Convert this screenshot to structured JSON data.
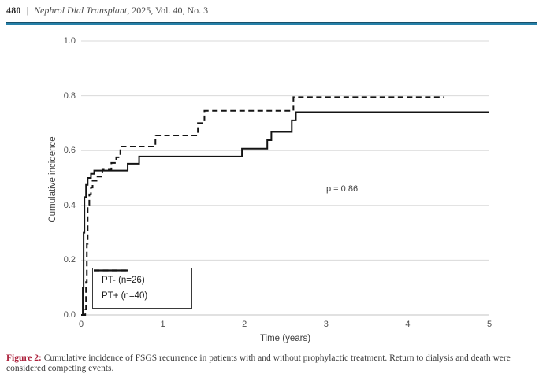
{
  "header": {
    "page_number": "480",
    "separator": "|",
    "journal": "Nephrol Dial Transplant",
    "meta": ", 2025, Vol. 40, No. 3"
  },
  "colors": {
    "header_rule": "#2680a8",
    "figure_label": "#ab1f3a",
    "curve": "#141414",
    "gridline": "#dadada",
    "axis_line": "#c3c3c3"
  },
  "chart_data": {
    "type": "line",
    "subtype": "step-function-cumulative-incidence",
    "title": "",
    "xlabel": "Time (years)",
    "ylabel": "Cumulative incidence",
    "xlim": [
      0,
      5
    ],
    "ylim": [
      0.0,
      1.0
    ],
    "x_tick_labels": [
      "0",
      "1",
      "2",
      "3",
      "4",
      "5"
    ],
    "y_tick_labels": [
      "0.0",
      "0.2",
      "0.4",
      "0.6",
      "0.8",
      "1.0"
    ],
    "grid": "horizontal",
    "annotation": "p = 0.86",
    "legend_position": "lower-left",
    "series": [
      {
        "name": "PT- (n=26)",
        "line_style": "dashed",
        "end_time": 4.45,
        "points": [
          [
            0,
            0
          ],
          [
            0.05,
            0.02
          ],
          [
            0.06,
            0.12
          ],
          [
            0.07,
            0.26
          ],
          [
            0.08,
            0.4
          ],
          [
            0.1,
            0.44
          ],
          [
            0.12,
            0.465
          ],
          [
            0.14,
            0.49
          ],
          [
            0.2,
            0.505
          ],
          [
            0.26,
            0.53
          ],
          [
            0.37,
            0.555
          ],
          [
            0.43,
            0.575
          ],
          [
            0.48,
            0.615
          ],
          [
            0.91,
            0.655
          ],
          [
            1.43,
            0.7
          ],
          [
            1.51,
            0.745
          ],
          [
            2.6,
            0.795
          ]
        ]
      },
      {
        "name": "PT+ (n=40)",
        "line_style": "solid",
        "end_time": 5.0,
        "points": [
          [
            0,
            0
          ],
          [
            0.02,
            0.1
          ],
          [
            0.03,
            0.3
          ],
          [
            0.04,
            0.43
          ],
          [
            0.06,
            0.475
          ],
          [
            0.08,
            0.5
          ],
          [
            0.12,
            0.515
          ],
          [
            0.16,
            0.527
          ],
          [
            0.57,
            0.552
          ],
          [
            0.71,
            0.578
          ],
          [
            1.97,
            0.607
          ],
          [
            2.28,
            0.638
          ],
          [
            2.33,
            0.668
          ],
          [
            2.58,
            0.71
          ],
          [
            2.63,
            0.74
          ]
        ]
      }
    ]
  },
  "caption": {
    "label": "Figure 2:",
    "text": " Cumulative incidence of FSGS recurrence in patients with and without prophylactic treatment. Return to dialysis and death were considered competing events."
  }
}
